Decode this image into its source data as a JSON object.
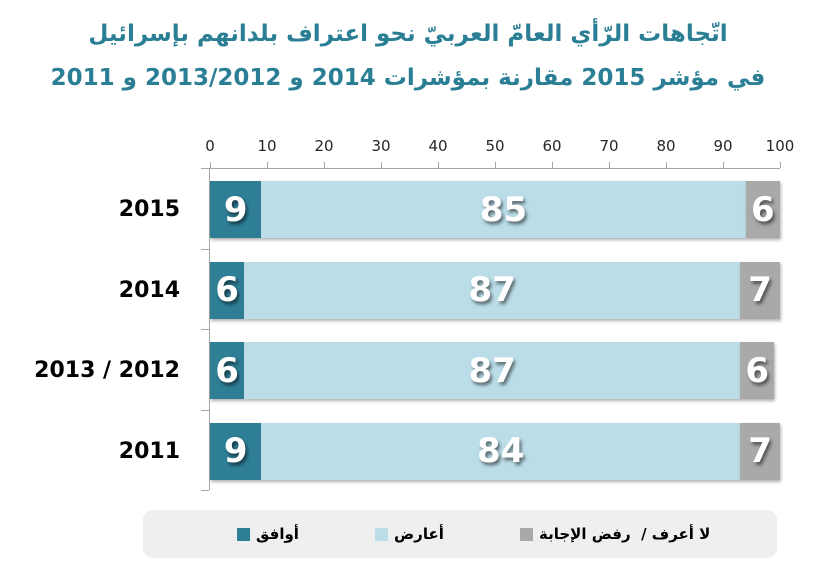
{
  "title": {
    "line1": "اتّجاهات الرّأي العامّ العربيّ نحو اعتراف بلدانهم بإسرائيل",
    "line2": "في مؤشر 2015 مقارنة بمؤشرات 2014 و 2013/2012 و 2011",
    "color": "#2b7f95"
  },
  "chart_data": {
    "type": "bar",
    "orientation": "horizontal",
    "stacked": true,
    "categories": [
      "2015",
      "2014",
      "2013 / 2012",
      "2011"
    ],
    "series": [
      {
        "key": "agree",
        "name": "أوافق",
        "color": "#2e7e96",
        "values": [
          9,
          6,
          6,
          9
        ]
      },
      {
        "key": "oppose",
        "name": "أعارض",
        "color": "#bbdde8",
        "values": [
          85,
          87,
          87,
          84
        ]
      },
      {
        "key": "no-answer",
        "name": "لا أعرف /  رفض الإجابة",
        "color": "#a9a9a9",
        "values": [
          6,
          7,
          6,
          7
        ]
      }
    ],
    "xlim": [
      0,
      100
    ],
    "x_ticks": [
      0,
      10,
      20,
      30,
      40,
      50,
      60,
      70,
      80,
      90,
      100
    ],
    "axis_position": "top",
    "value_labels": "inside-white",
    "legend_position": "bottom",
    "axis_color": "#a6a6a6",
    "tick_label_color": "#262626"
  },
  "legend_item_offsets": [
    94,
    232,
    377
  ]
}
